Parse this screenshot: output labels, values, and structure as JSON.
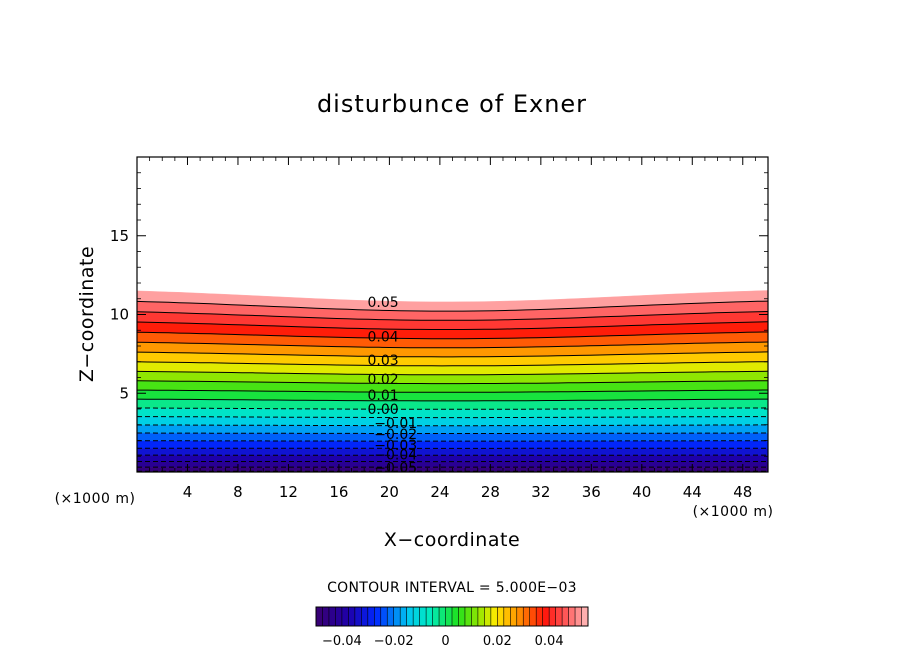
{
  "chart_data": {
    "type": "contour",
    "title": "disturbunce of Exner",
    "xlabel": "X−coordinate",
    "ylabel": "Z−coordinate",
    "x_unit_label": "(×1000 m)",
    "x_unit_label_right": "(×1000 m)",
    "xlim": [
      0,
      50
    ],
    "ylim": [
      0,
      20
    ],
    "x_ticks": [
      4,
      8,
      12,
      16,
      20,
      24,
      28,
      32,
      36,
      40,
      44,
      48
    ],
    "y_ticks": [
      5,
      10,
      15
    ],
    "contour_interval_text": "CONTOUR INTERVAL = 5.000E−03",
    "contour_levels": [
      -0.05,
      -0.045,
      -0.04,
      -0.035,
      -0.03,
      -0.025,
      -0.02,
      -0.015,
      -0.01,
      -0.005,
      0.0,
      0.005,
      0.01,
      0.015,
      0.02,
      0.025,
      0.03,
      0.035,
      0.04,
      0.045,
      0.05,
      0.055
    ],
    "contour_labels": [
      {
        "text": "0.05",
        "x": 19.5,
        "z": 10.8
      },
      {
        "text": "0.04",
        "x": 19.5,
        "z": 8.6
      },
      {
        "text": "0.03",
        "x": 19.5,
        "z": 7.1
      },
      {
        "text": "0.02",
        "x": 19.5,
        "z": 5.9
      },
      {
        "text": "0.01",
        "x": 19.5,
        "z": 4.9
      },
      {
        "text": "0.00",
        "x": 19.5,
        "z": 4.0
      },
      {
        "text": "−0.01",
        "x": 20.5,
        "z": 3.1
      },
      {
        "text": "−0.02",
        "x": 20.5,
        "z": 2.4
      },
      {
        "text": "−0.03",
        "x": 20.5,
        "z": 1.7
      },
      {
        "text": "−0.04",
        "x": 20.5,
        "z": 1.1
      },
      {
        "text": "−0.05",
        "x": 20.5,
        "z": 0.3
      }
    ],
    "field_top_z_edges": 11.7,
    "field_top_z_center": 10.8,
    "colorbar": {
      "range": [
        -0.05,
        0.055
      ],
      "tick_values": [
        -0.04,
        -0.02,
        0,
        0.02,
        0.04
      ],
      "tick_labels": [
        "−0.04",
        "−0.02",
        "0",
        "0.02",
        "0.04"
      ]
    },
    "colors": {
      "low": "#3a0070",
      "mid_cyan": "#00e8e8",
      "mid_green": "#20e020",
      "yellow": "#ffee00",
      "red": "#ff1010",
      "high": "#ffb0b0"
    }
  }
}
